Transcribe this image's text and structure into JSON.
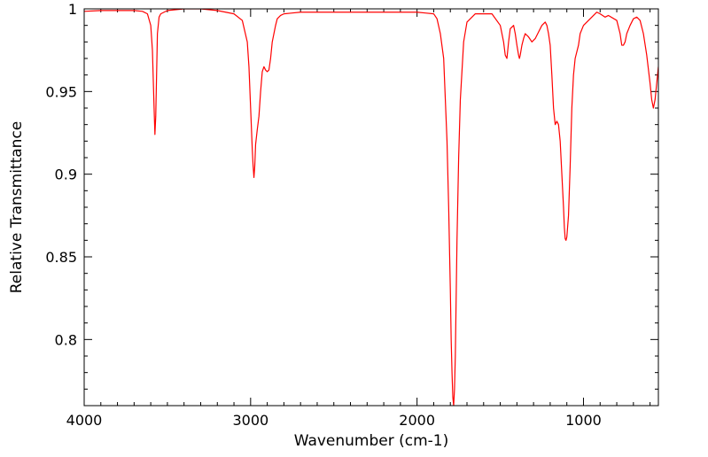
{
  "chart_data": {
    "type": "line",
    "title": "",
    "xlabel": "Wavenumber (cm-1)",
    "ylabel": "Relative Transmittance",
    "xlim": [
      4000,
      550
    ],
    "ylim": [
      0.76,
      1.0
    ],
    "x_reversed": true,
    "x_ticks": [
      4000,
      3000,
      2000,
      1000
    ],
    "x_tick_labels": [
      "4000",
      "3000",
      "2000",
      "1000"
    ],
    "y_ticks": [
      1.0,
      0.95,
      0.9,
      0.85,
      0.8
    ],
    "y_tick_labels": [
      "1",
      "0.95",
      "0.9",
      "0.85",
      "0.8"
    ],
    "grid": false,
    "series": [
      {
        "color": "#ff0000",
        "x": [
          4000,
          3900,
          3800,
          3700,
          3650,
          3620,
          3600,
          3590,
          3580,
          3575,
          3570,
          3560,
          3550,
          3540,
          3500,
          3400,
          3300,
          3200,
          3150,
          3100,
          3050,
          3020,
          3010,
          3000,
          2990,
          2985,
          2980,
          2975,
          2970,
          2960,
          2950,
          2940,
          2930,
          2920,
          2910,
          2900,
          2890,
          2880,
          2870,
          2860,
          2850,
          2840,
          2820,
          2800,
          2750,
          2700,
          2600,
          2500,
          2400,
          2300,
          2200,
          2100,
          2000,
          1950,
          1900,
          1880,
          1860,
          1840,
          1820,
          1810,
          1800,
          1795,
          1790,
          1785,
          1780,
          1775,
          1770,
          1760,
          1750,
          1740,
          1720,
          1700,
          1650,
          1600,
          1550,
          1500,
          1480,
          1470,
          1460,
          1450,
          1440,
          1420,
          1410,
          1400,
          1390,
          1385,
          1380,
          1375,
          1370,
          1360,
          1350,
          1330,
          1310,
          1290,
          1270,
          1250,
          1230,
          1220,
          1210,
          1200,
          1190,
          1180,
          1170,
          1160,
          1150,
          1140,
          1130,
          1120,
          1115,
          1110,
          1105,
          1100,
          1090,
          1080,
          1070,
          1060,
          1050,
          1040,
          1030,
          1020,
          1000,
          980,
          950,
          920,
          900,
          870,
          850,
          800,
          780,
          770,
          760,
          750,
          740,
          720,
          700,
          680,
          660,
          640,
          620,
          600,
          590,
          580,
          570,
          560,
          550
        ],
        "y": [
          0.9985,
          0.999,
          0.999,
          0.999,
          0.9985,
          0.997,
          0.99,
          0.975,
          0.94,
          0.924,
          0.935,
          0.985,
          0.995,
          0.997,
          0.999,
          1.0,
          1.0,
          0.999,
          0.998,
          0.997,
          0.993,
          0.98,
          0.965,
          0.94,
          0.915,
          0.905,
          0.898,
          0.905,
          0.918,
          0.927,
          0.935,
          0.95,
          0.962,
          0.965,
          0.963,
          0.962,
          0.963,
          0.97,
          0.98,
          0.985,
          0.99,
          0.994,
          0.996,
          0.997,
          0.9975,
          0.998,
          0.998,
          0.998,
          0.998,
          0.998,
          0.998,
          0.998,
          0.998,
          0.9975,
          0.997,
          0.994,
          0.985,
          0.97,
          0.92,
          0.88,
          0.83,
          0.8,
          0.78,
          0.765,
          0.76,
          0.77,
          0.79,
          0.86,
          0.91,
          0.945,
          0.98,
          0.992,
          0.997,
          0.997,
          0.997,
          0.99,
          0.98,
          0.972,
          0.97,
          0.98,
          0.988,
          0.99,
          0.985,
          0.978,
          0.972,
          0.97,
          0.972,
          0.975,
          0.978,
          0.982,
          0.985,
          0.983,
          0.98,
          0.982,
          0.986,
          0.99,
          0.992,
          0.99,
          0.985,
          0.978,
          0.96,
          0.94,
          0.93,
          0.932,
          0.93,
          0.92,
          0.9,
          0.88,
          0.868,
          0.861,
          0.86,
          0.862,
          0.875,
          0.905,
          0.94,
          0.96,
          0.97,
          0.974,
          0.978,
          0.985,
          0.99,
          0.992,
          0.995,
          0.998,
          0.997,
          0.995,
          0.996,
          0.993,
          0.985,
          0.978,
          0.978,
          0.98,
          0.985,
          0.99,
          0.994,
          0.995,
          0.993,
          0.985,
          0.972,
          0.955,
          0.945,
          0.94,
          0.945,
          0.955,
          0.965
        ]
      }
    ]
  }
}
